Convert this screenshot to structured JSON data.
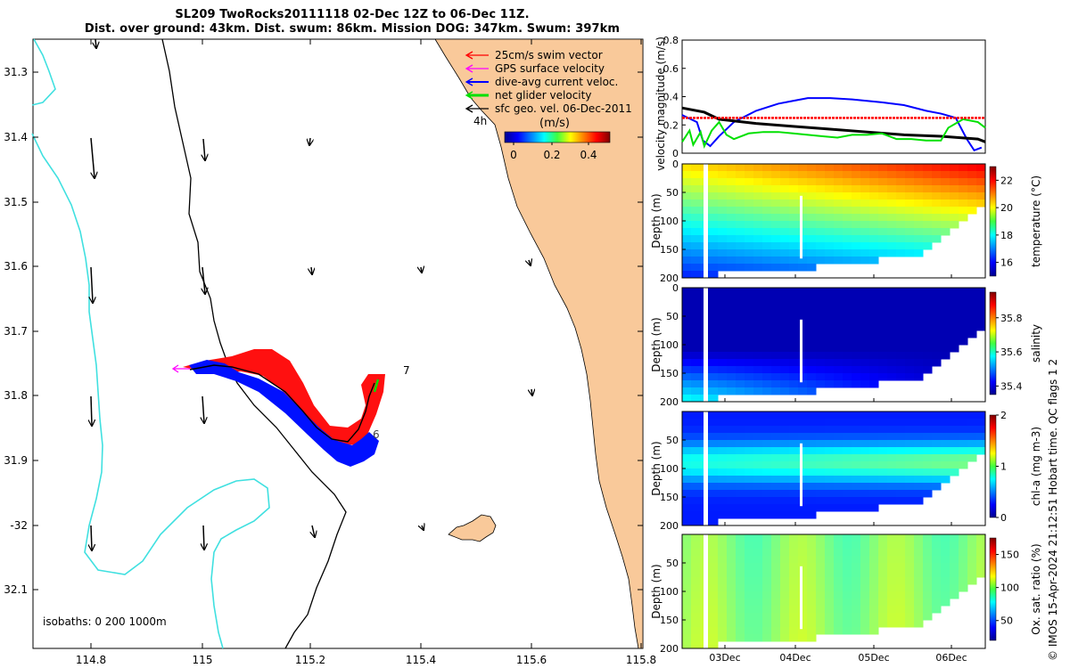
{
  "title": {
    "line1": "SL209 TwoRocks20111118 02-Dec 12Z to 06-Dec 11Z.",
    "line2": "Dist. over ground: 43km. Dist. swum: 86km. Mission DOG: 347km. Swum: 397km"
  },
  "map": {
    "lon_ticks": [
      "114.8",
      "115",
      "115.2",
      "115.4",
      "115.6",
      "115.8"
    ],
    "lat_ticks": [
      "31.3",
      "31.4",
      "31.5",
      "31.6",
      "31.7",
      "31.8",
      "31.9",
      "-32",
      "32.1"
    ],
    "isobaths": "isobaths: 0   200  1000m",
    "legend": [
      {
        "label": "25cm/s swim vector",
        "color": "#ff0000"
      },
      {
        "label": "GPS surface velocity",
        "color": "#ff00ff"
      },
      {
        "label": "dive-avg current veloc.",
        "color": "#0000ff"
      },
      {
        "label": "net glider velocity",
        "color": "#00e000"
      },
      {
        "label": "sfc geo. vel. 06-Dec-2011",
        "color": "#000000"
      }
    ],
    "legend_fragment": "4h",
    "colorbar_label": "(m/s)",
    "colorbar_ticks": [
      "0",
      "0.2",
      "0.4"
    ],
    "track_labels": [
      "7",
      "6"
    ],
    "land_color": "#f9c99a",
    "coast_color": "#40e0e0"
  },
  "chart_data": [
    {
      "type": "line",
      "title": "",
      "ylabel": "velocity magnitude (m/s)",
      "ylim": [
        0,
        0.8
      ],
      "yticks": [
        "0",
        "0.2",
        "0.4",
        "0.6",
        "0.8"
      ],
      "xlim": [
        2.5,
        6.6
      ],
      "series": [
        {
          "name": "dive-avg current",
          "color": "#0000ff",
          "x": [
            2.5,
            2.7,
            2.78,
            2.88,
            3.0,
            3.2,
            3.5,
            3.8,
            4.0,
            4.2,
            4.5,
            4.8,
            5.0,
            5.2,
            5.5,
            5.8,
            6.0,
            6.2,
            6.35,
            6.45,
            6.55
          ],
          "y": [
            0.27,
            0.22,
            0.09,
            0.05,
            0.12,
            0.22,
            0.3,
            0.35,
            0.37,
            0.39,
            0.39,
            0.38,
            0.37,
            0.36,
            0.34,
            0.3,
            0.28,
            0.25,
            0.1,
            0.02,
            0.04
          ]
        },
        {
          "name": "sfc geo vel",
          "color": "#000000",
          "x": [
            2.5,
            2.8,
            3.0,
            3.5,
            4.0,
            4.5,
            5.0,
            5.5,
            6.0,
            6.5,
            6.6
          ],
          "y": [
            0.32,
            0.29,
            0.24,
            0.21,
            0.19,
            0.17,
            0.15,
            0.13,
            0.12,
            0.1,
            0.08
          ]
        },
        {
          "name": "net glider velocity",
          "color": "#00e000",
          "x": [
            2.5,
            2.6,
            2.65,
            2.75,
            2.8,
            2.9,
            3.0,
            3.1,
            3.2,
            3.4,
            3.6,
            3.8,
            4.0,
            4.2,
            4.4,
            4.6,
            4.8,
            5.0,
            5.2,
            5.4,
            5.6,
            5.8,
            6.0,
            6.1,
            6.2,
            6.3,
            6.5,
            6.6
          ],
          "y": [
            0.08,
            0.16,
            0.06,
            0.15,
            0.05,
            0.16,
            0.22,
            0.13,
            0.1,
            0.14,
            0.15,
            0.15,
            0.14,
            0.13,
            0.12,
            0.11,
            0.13,
            0.13,
            0.14,
            0.1,
            0.1,
            0.09,
            0.09,
            0.18,
            0.21,
            0.24,
            0.22,
            0.18
          ]
        },
        {
          "name": "25cm/s swim vector",
          "color": "#ff0000",
          "x": [
            2.5,
            6.6
          ],
          "y": [
            0.25,
            0.25
          ]
        }
      ]
    },
    {
      "type": "heatmap",
      "variable": "temperature",
      "ylabel": "Depth (m)",
      "colorbar_label": "temperature (°C)",
      "yticks": [
        "0",
        "50",
        "100",
        "150",
        "200"
      ],
      "colorbar_ticks": [
        "16",
        "18",
        "20",
        "22"
      ],
      "clim": [
        15,
        23
      ],
      "xticks": [
        "03Dec",
        "04Dec",
        "05Dec",
        "06Dec"
      ]
    },
    {
      "type": "heatmap",
      "variable": "salinity",
      "ylabel": "Depth (m)",
      "colorbar_label": "salinity",
      "yticks": [
        "0",
        "50",
        "100",
        "150",
        "200"
      ],
      "colorbar_ticks": [
        "35.4",
        "35.6",
        "35.8"
      ],
      "clim": [
        35.35,
        35.95
      ],
      "xticks": [
        "03Dec",
        "04Dec",
        "05Dec",
        "06Dec"
      ]
    },
    {
      "type": "heatmap",
      "variable": "chl-a",
      "ylabel": "Depth (m)",
      "colorbar_label": "chl-a (mg m-3)",
      "yticks": [
        "50",
        "100",
        "150",
        "200"
      ],
      "colorbar_ticks": [
        "0",
        "1",
        "2"
      ],
      "clim": [
        0,
        2
      ],
      "xticks": [
        "03Dec",
        "04Dec",
        "05Dec",
        "06Dec"
      ]
    },
    {
      "type": "heatmap",
      "variable": "oxygen saturation",
      "ylabel": "Depth (m)",
      "colorbar_label": "Ox. sat. ratio (%)",
      "yticks": [
        "50",
        "100",
        "150",
        "200"
      ],
      "colorbar_ticks": [
        "50",
        "100",
        "150"
      ],
      "clim": [
        20,
        175
      ],
      "xticks": [
        "03Dec",
        "04Dec",
        "05Dec",
        "06Dec"
      ]
    }
  ],
  "credit": "© IMOS 15-Apr-2024 21:12:51 Hobart time. QC flags 1  2"
}
